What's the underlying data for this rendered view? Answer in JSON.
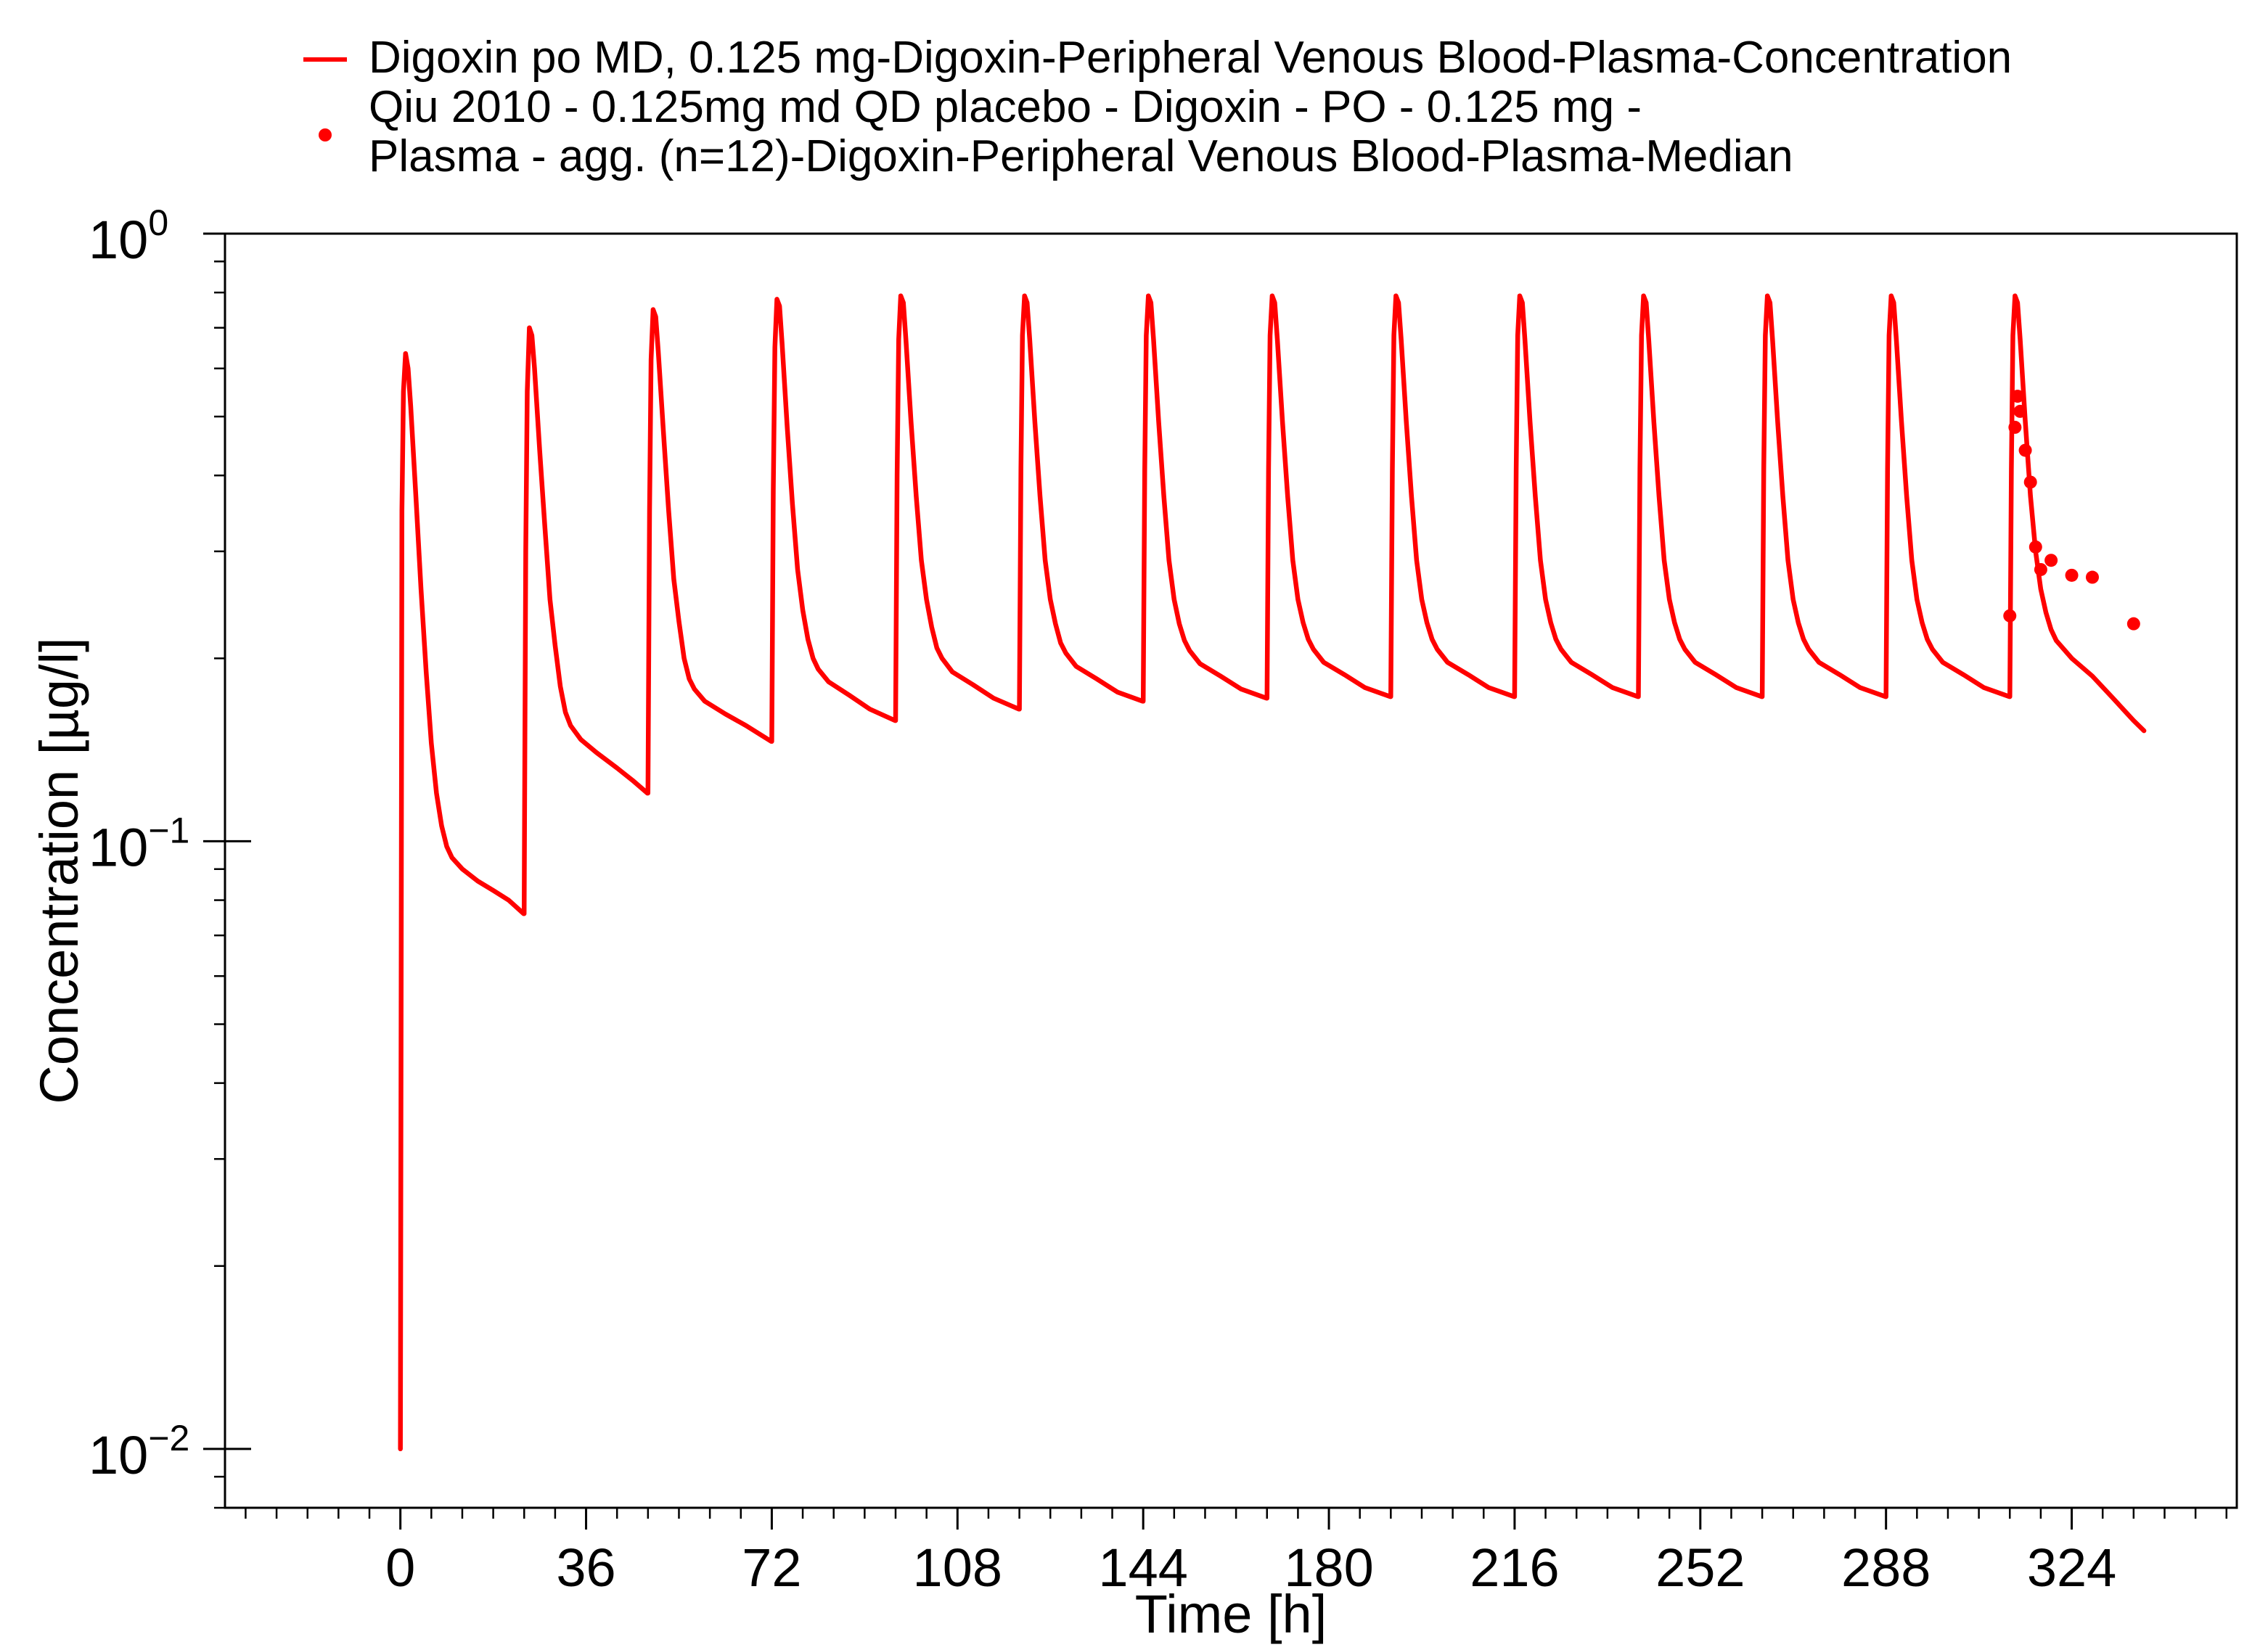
{
  "chart_data": {
    "type": "line",
    "xlabel": "Time [h]",
    "ylabel": "Concentration [µg/l]",
    "xlim": [
      -34,
      356
    ],
    "ylim": [
      0.008,
      1.0
    ],
    "yscale": "log",
    "grid": false,
    "legend_position": "top",
    "x_ticks": [
      "0",
      "36",
      "72",
      "108",
      "144",
      "180",
      "216",
      "252",
      "288",
      "324"
    ],
    "y_ticks": [
      {
        "base": "10",
        "exp": "0",
        "value": 1
      },
      {
        "base": "10",
        "exp": "−1",
        "value": 0.1
      },
      {
        "base": "10",
        "exp": "−2",
        "value": 0.01
      }
    ],
    "legend": [
      {
        "lines": [
          "Digoxin po MD, 0.125 mg-Digoxin-Peripheral Venous Blood-Plasma-Concentration"
        ],
        "marker": "line"
      },
      {
        "lines": [
          "Qiu 2010 - 0.125mg md QD placebo - Digoxin - PO - 0.125 mg -",
          "Plasma - agg. (n=12)-Digoxin-Peripheral Venous Blood-Plasma-Median"
        ],
        "marker": "dot"
      }
    ],
    "series": [
      {
        "name": "Digoxin po MD, 0.125 mg-Digoxin-Peripheral Venous Blood-Plasma-Concentration",
        "color": "#ff0000",
        "kind": "line",
        "points": [
          [
            0,
            0.01
          ],
          [
            0.3,
            0.35
          ],
          [
            0.6,
            0.55
          ],
          [
            1.0,
            0.635
          ],
          [
            1.5,
            0.6
          ],
          [
            2,
            0.52
          ],
          [
            3,
            0.37
          ],
          [
            4,
            0.26
          ],
          [
            5,
            0.19
          ],
          [
            6,
            0.145
          ],
          [
            7,
            0.12
          ],
          [
            8,
            0.106
          ],
          [
            9,
            0.098
          ],
          [
            10,
            0.094
          ],
          [
            12,
            0.09
          ],
          [
            15,
            0.086
          ],
          [
            18,
            0.083
          ],
          [
            21,
            0.08
          ],
          [
            23.9,
            0.076
          ],
          [
            24,
            0.076
          ],
          [
            24.3,
            0.3
          ],
          [
            24.6,
            0.55
          ],
          [
            25,
            0.7
          ],
          [
            25.5,
            0.68
          ],
          [
            26,
            0.6
          ],
          [
            27,
            0.44
          ],
          [
            28,
            0.33
          ],
          [
            29,
            0.25
          ],
          [
            30,
            0.21
          ],
          [
            31,
            0.18
          ],
          [
            32,
            0.163
          ],
          [
            33,
            0.155
          ],
          [
            35,
            0.147
          ],
          [
            38,
            0.14
          ],
          [
            42,
            0.132
          ],
          [
            45,
            0.126
          ],
          [
            47.9,
            0.12
          ],
          [
            48,
            0.12
          ],
          [
            48.3,
            0.35
          ],
          [
            48.6,
            0.62
          ],
          [
            49,
            0.75
          ],
          [
            49.5,
            0.73
          ],
          [
            50,
            0.64
          ],
          [
            51,
            0.47
          ],
          [
            52,
            0.35
          ],
          [
            53,
            0.27
          ],
          [
            54,
            0.23
          ],
          [
            55,
            0.2
          ],
          [
            56,
            0.185
          ],
          [
            57,
            0.178
          ],
          [
            59,
            0.17
          ],
          [
            63,
            0.162
          ],
          [
            67,
            0.155
          ],
          [
            71.9,
            0.146
          ],
          [
            72,
            0.146
          ],
          [
            72.3,
            0.38
          ],
          [
            72.6,
            0.65
          ],
          [
            73,
            0.78
          ],
          [
            73.5,
            0.76
          ],
          [
            74,
            0.66
          ],
          [
            75,
            0.48
          ],
          [
            76,
            0.36
          ],
          [
            77,
            0.28
          ],
          [
            78,
            0.24
          ],
          [
            79,
            0.215
          ],
          [
            80,
            0.2
          ],
          [
            81,
            0.192
          ],
          [
            83,
            0.183
          ],
          [
            87,
            0.174
          ],
          [
            91,
            0.165
          ],
          [
            95.9,
            0.158
          ],
          [
            96,
            0.158
          ],
          [
            96.3,
            0.4
          ],
          [
            96.6,
            0.67
          ],
          [
            97,
            0.79
          ],
          [
            97.5,
            0.77
          ],
          [
            98,
            0.67
          ],
          [
            99,
            0.49
          ],
          [
            100,
            0.37
          ],
          [
            101,
            0.29
          ],
          [
            102,
            0.25
          ],
          [
            103,
            0.225
          ],
          [
            104,
            0.208
          ],
          [
            105,
            0.2
          ],
          [
            107,
            0.19
          ],
          [
            111,
            0.181
          ],
          [
            115,
            0.172
          ],
          [
            119.9,
            0.165
          ],
          [
            120,
            0.165
          ],
          [
            120.3,
            0.41
          ],
          [
            120.6,
            0.68
          ],
          [
            121,
            0.79
          ],
          [
            121.5,
            0.77
          ],
          [
            122,
            0.67
          ],
          [
            123,
            0.49
          ],
          [
            124,
            0.37
          ],
          [
            125,
            0.29
          ],
          [
            126,
            0.25
          ],
          [
            127,
            0.228
          ],
          [
            128,
            0.212
          ],
          [
            129,
            0.204
          ],
          [
            131,
            0.194
          ],
          [
            135,
            0.185
          ],
          [
            139,
            0.176
          ],
          [
            143.9,
            0.17
          ],
          [
            144,
            0.17
          ],
          [
            144.3,
            0.41
          ],
          [
            144.6,
            0.68
          ],
          [
            145,
            0.79
          ],
          [
            145.5,
            0.77
          ],
          [
            146,
            0.67
          ],
          [
            147,
            0.49
          ],
          [
            148,
            0.37
          ],
          [
            149,
            0.29
          ],
          [
            150,
            0.25
          ],
          [
            151,
            0.228
          ],
          [
            152,
            0.214
          ],
          [
            153,
            0.206
          ],
          [
            155,
            0.196
          ],
          [
            159,
            0.187
          ],
          [
            163,
            0.178
          ],
          [
            167.9,
            0.172
          ],
          [
            168,
            0.172
          ],
          [
            168.3,
            0.41
          ],
          [
            168.6,
            0.68
          ],
          [
            169,
            0.79
          ],
          [
            169.5,
            0.77
          ],
          [
            170,
            0.67
          ],
          [
            171,
            0.49
          ],
          [
            172,
            0.37
          ],
          [
            173,
            0.29
          ],
          [
            174,
            0.25
          ],
          [
            175,
            0.229
          ],
          [
            176,
            0.215
          ],
          [
            177,
            0.207
          ],
          [
            179,
            0.197
          ],
          [
            183,
            0.188
          ],
          [
            187,
            0.179
          ],
          [
            191.9,
            0.173
          ],
          [
            192,
            0.173
          ],
          [
            192.3,
            0.41
          ],
          [
            192.6,
            0.68
          ],
          [
            193,
            0.79
          ],
          [
            193.5,
            0.77
          ],
          [
            194,
            0.67
          ],
          [
            195,
            0.49
          ],
          [
            196,
            0.37
          ],
          [
            197,
            0.29
          ],
          [
            198,
            0.25
          ],
          [
            199,
            0.229
          ],
          [
            200,
            0.215
          ],
          [
            201,
            0.207
          ],
          [
            203,
            0.197
          ],
          [
            207,
            0.188
          ],
          [
            211,
            0.179
          ],
          [
            215.9,
            0.173
          ],
          [
            216,
            0.173
          ],
          [
            216.3,
            0.41
          ],
          [
            216.6,
            0.68
          ],
          [
            217,
            0.79
          ],
          [
            217.5,
            0.77
          ],
          [
            218,
            0.67
          ],
          [
            219,
            0.49
          ],
          [
            220,
            0.37
          ],
          [
            221,
            0.29
          ],
          [
            222,
            0.25
          ],
          [
            223,
            0.229
          ],
          [
            224,
            0.215
          ],
          [
            225,
            0.207
          ],
          [
            227,
            0.197
          ],
          [
            231,
            0.188
          ],
          [
            235,
            0.179
          ],
          [
            239.9,
            0.173
          ],
          [
            240,
            0.173
          ],
          [
            240.3,
            0.41
          ],
          [
            240.6,
            0.68
          ],
          [
            241,
            0.79
          ],
          [
            241.5,
            0.77
          ],
          [
            242,
            0.67
          ],
          [
            243,
            0.49
          ],
          [
            244,
            0.37
          ],
          [
            245,
            0.29
          ],
          [
            246,
            0.25
          ],
          [
            247,
            0.229
          ],
          [
            248,
            0.215
          ],
          [
            249,
            0.207
          ],
          [
            251,
            0.197
          ],
          [
            255,
            0.188
          ],
          [
            259,
            0.179
          ],
          [
            263.9,
            0.173
          ],
          [
            264,
            0.173
          ],
          [
            264.3,
            0.41
          ],
          [
            264.6,
            0.68
          ],
          [
            265,
            0.79
          ],
          [
            265.5,
            0.77
          ],
          [
            266,
            0.67
          ],
          [
            267,
            0.49
          ],
          [
            268,
            0.37
          ],
          [
            269,
            0.29
          ],
          [
            270,
            0.25
          ],
          [
            271,
            0.229
          ],
          [
            272,
            0.215
          ],
          [
            273,
            0.207
          ],
          [
            275,
            0.197
          ],
          [
            279,
            0.188
          ],
          [
            283,
            0.179
          ],
          [
            287.9,
            0.173
          ],
          [
            288,
            0.173
          ],
          [
            288.3,
            0.41
          ],
          [
            288.6,
            0.68
          ],
          [
            289,
            0.79
          ],
          [
            289.5,
            0.77
          ],
          [
            290,
            0.67
          ],
          [
            291,
            0.49
          ],
          [
            292,
            0.37
          ],
          [
            293,
            0.29
          ],
          [
            294,
            0.25
          ],
          [
            295,
            0.229
          ],
          [
            296,
            0.215
          ],
          [
            297,
            0.207
          ],
          [
            299,
            0.197
          ],
          [
            303,
            0.188
          ],
          [
            307,
            0.179
          ],
          [
            311.9,
            0.173
          ],
          [
            312,
            0.173
          ],
          [
            312.3,
            0.41
          ],
          [
            312.6,
            0.68
          ],
          [
            313,
            0.79
          ],
          [
            313.5,
            0.77
          ],
          [
            314,
            0.67
          ],
          [
            315,
            0.49
          ],
          [
            316,
            0.37
          ],
          [
            317,
            0.3
          ],
          [
            318,
            0.26
          ],
          [
            319,
            0.238
          ],
          [
            320,
            0.223
          ],
          [
            321,
            0.214
          ],
          [
            324,
            0.2
          ],
          [
            328,
            0.187
          ],
          [
            332,
            0.172
          ],
          [
            336,
            0.158
          ],
          [
            338,
            0.152
          ]
        ]
      },
      {
        "name": "Qiu 2010 - 0.125mg md QD placebo - Digoxin - PO - 0.125 mg - Plasma - agg. (n=12)-Digoxin-Peripheral Venous Blood-Plasma-Median",
        "color": "#ff0000",
        "kind": "scatter",
        "points": [
          [
            312,
            0.235
          ],
          [
            313,
            0.48
          ],
          [
            313.5,
            0.54
          ],
          [
            314,
            0.51
          ],
          [
            315,
            0.44
          ],
          [
            316,
            0.39
          ],
          [
            317,
            0.305
          ],
          [
            318,
            0.28
          ],
          [
            320,
            0.29
          ],
          [
            324,
            0.274
          ],
          [
            328,
            0.272
          ],
          [
            336,
            0.228
          ]
        ]
      }
    ]
  }
}
